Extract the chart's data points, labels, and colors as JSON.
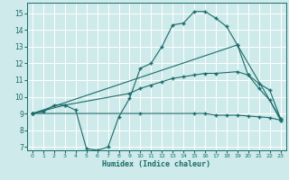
{
  "xlabel": "Humidex (Indice chaleur)",
  "bg_color": "#ceeaea",
  "line_color": "#1a6b6b",
  "grid_color": "#b8d8d8",
  "xlim": [
    -0.5,
    23.5
  ],
  "ylim": [
    6.8,
    15.6
  ],
  "yticks": [
    7,
    8,
    9,
    10,
    11,
    12,
    13,
    14,
    15
  ],
  "xticks": [
    0,
    1,
    2,
    3,
    4,
    5,
    6,
    7,
    8,
    9,
    10,
    11,
    12,
    13,
    14,
    15,
    16,
    17,
    18,
    19,
    20,
    21,
    22,
    23
  ],
  "series1_x": [
    0,
    1,
    2,
    3,
    4,
    5,
    6,
    7,
    8,
    9,
    10,
    11,
    12,
    13,
    14,
    15,
    16,
    17,
    18,
    19,
    20,
    21,
    22,
    23
  ],
  "series1_y": [
    9.0,
    9.1,
    9.5,
    9.5,
    9.2,
    6.9,
    6.8,
    7.0,
    8.8,
    9.9,
    11.7,
    12.0,
    13.0,
    14.3,
    14.4,
    15.1,
    15.1,
    14.7,
    14.2,
    13.1,
    11.3,
    10.5,
    9.8,
    8.6
  ],
  "series2_x": [
    0,
    3,
    9,
    10,
    11,
    12,
    13,
    14,
    15,
    16,
    17,
    19,
    20,
    21,
    22,
    23
  ],
  "series2_y": [
    9.0,
    9.5,
    10.2,
    10.5,
    10.7,
    10.9,
    11.1,
    11.2,
    11.3,
    11.4,
    11.4,
    11.5,
    11.3,
    10.8,
    10.4,
    8.7
  ],
  "series3_x": [
    0,
    19,
    23
  ],
  "series3_y": [
    9.0,
    13.1,
    8.7
  ],
  "series4_x": [
    0,
    10,
    15,
    16,
    17,
    18,
    19,
    20,
    21,
    22,
    23
  ],
  "series4_y": [
    9.0,
    9.0,
    9.0,
    9.0,
    8.9,
    8.9,
    8.9,
    8.85,
    8.8,
    8.75,
    8.6
  ]
}
